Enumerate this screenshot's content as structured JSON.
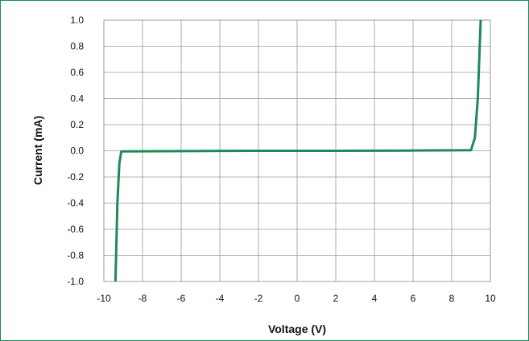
{
  "chart_data": {
    "type": "line",
    "title": "",
    "xlabel": "Voltage (V)",
    "ylabel": "Current (mA)",
    "xlim": [
      -10,
      10
    ],
    "ylim": [
      -1.0,
      1.0
    ],
    "grid": true,
    "legend": "none",
    "x_ticks": [
      "-10",
      "-8",
      "-6",
      "-4",
      "-2",
      "0",
      "2",
      "4",
      "6",
      "8",
      "10"
    ],
    "y_ticks": [
      "1.0",
      "0.8",
      "0.6",
      "0.4",
      "0.2",
      "0.0",
      "-0.2",
      "-0.4",
      "-0.6",
      "-0.8",
      "-1.0"
    ],
    "series": [
      {
        "color": "#1e8a57",
        "points": [
          [
            -9.4,
            -1.0
          ],
          [
            -9.3,
            -0.4
          ],
          [
            -9.2,
            -0.1
          ],
          [
            -9.1,
            -0.005
          ],
          [
            -8.0,
            -0.004
          ],
          [
            -6.0,
            -0.002
          ],
          [
            -4.0,
            -0.001
          ],
          [
            -2.0,
            0.0
          ],
          [
            0.0,
            0.0
          ],
          [
            2.0,
            0.0
          ],
          [
            4.0,
            0.001
          ],
          [
            6.0,
            0.002
          ],
          [
            8.0,
            0.004
          ],
          [
            9.0,
            0.005
          ],
          [
            9.2,
            0.1
          ],
          [
            9.35,
            0.4
          ],
          [
            9.5,
            1.0
          ]
        ]
      }
    ]
  },
  "colors": {
    "frame": "#1a8a5a",
    "grid": "#9a9a9a",
    "line": "#1e8a57"
  }
}
